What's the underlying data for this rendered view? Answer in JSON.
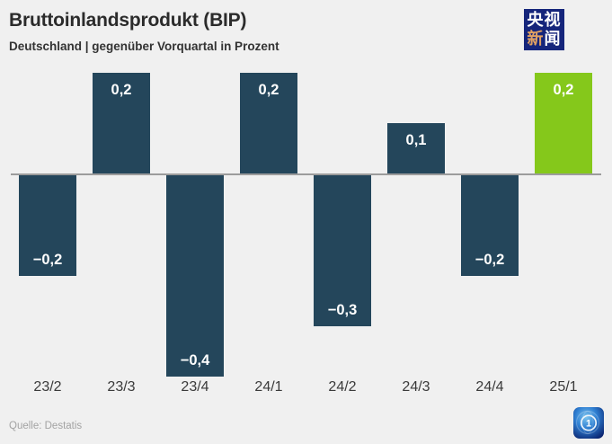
{
  "header": {
    "title": "Bruttoinlandsprodukt (BIP)",
    "subtitle": "Deutschland | gegenüber Vorquartal in Prozent"
  },
  "branding": {
    "cctv_logo": {
      "row1": "央视",
      "row2_char1": "新",
      "row2_char2": "闻",
      "bg_color": "#15257b",
      "accent_color": "#dfa063"
    },
    "ard_logo": {
      "label": "1"
    }
  },
  "source": "Quelle: Destatis",
  "colors": {
    "background": "#f0f0f0",
    "title_text": "#2b2b2b",
    "subtitle_text": "#333333",
    "axis_text": "#3a3a3a",
    "source_text": "#a3a3a3",
    "value_text": "#ffffff"
  },
  "chart_data": {
    "type": "bar",
    "title": "Bruttoinlandsprodukt (BIP)",
    "subtitle": "Deutschland | gegenüber Vorquartal in Prozent",
    "categories": [
      "23/2",
      "23/3",
      "23/4",
      "24/1",
      "24/2",
      "24/3",
      "24/4",
      "25/1"
    ],
    "values": [
      -0.2,
      0.2,
      -0.4,
      0.2,
      -0.3,
      0.1,
      -0.2,
      0.2
    ],
    "value_labels": [
      "−0,2",
      "0,2",
      "−0,4",
      "0,2",
      "−0,3",
      "0,1",
      "−0,2",
      "0,2"
    ],
    "unit": "Prozent gegenüber Vorquartal",
    "ylim": [
      -0.45,
      0.25
    ],
    "grid": false,
    "legend": "none",
    "bar_color": "#24465b",
    "highlight_color": "#85c81b",
    "highlight_index": 7,
    "baseline_color": "#9c9c9c",
    "source": "Quelle: Destatis"
  }
}
